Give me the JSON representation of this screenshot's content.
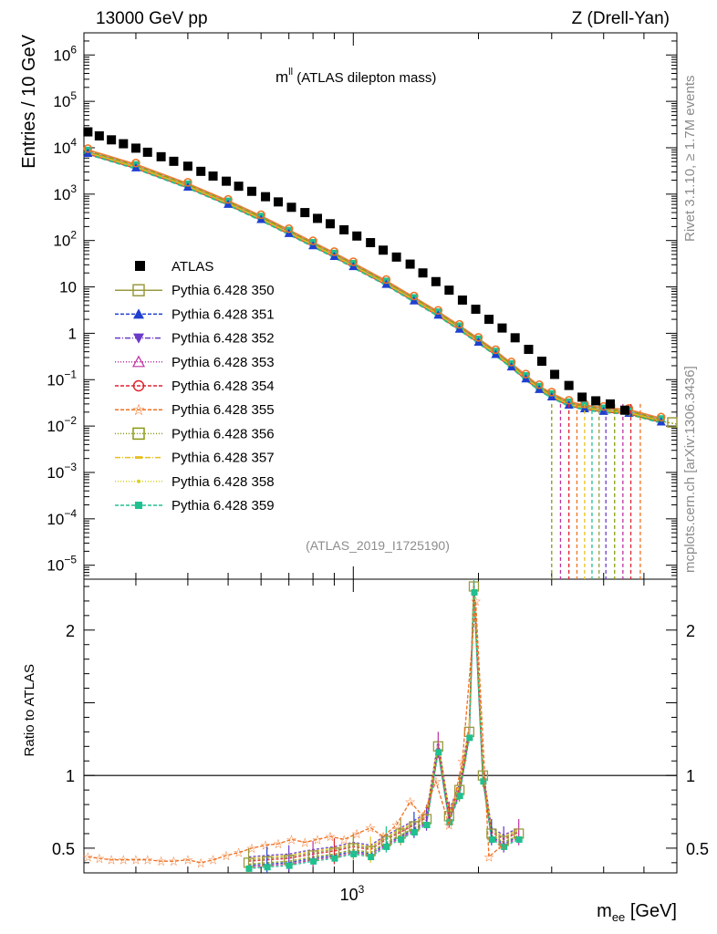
{
  "header": {
    "left": "13000 GeV pp",
    "right": "Z (Drell-Yan)",
    "title_main": "m",
    "title_sup": "ll",
    "title_rest": " (ATLAS dilepton mass)",
    "analysis_tag": "(ATLAS_2019_I1725190)",
    "side_top": "Rivet 3.1.10, ≥ 1.7M events",
    "side_bottom": "mcplots.cern.ch [arXiv:1306.3436]"
  },
  "axes": {
    "ylabel_main": "Entries / 10 GeV",
    "ylabel_ratio": "Ratio to ATLAS",
    "xlabel_base": "m",
    "xlabel_sub": "ee",
    "xlabel_unit": " [GeV]",
    "x_tick_base": "10",
    "x_tick_exp": "3"
  },
  "colors": {
    "atlas": "#000000",
    "s350": "#9a9a40",
    "s351": "#1f3fd0",
    "s352": "#6a3ac8",
    "s353": "#c030a0",
    "s354": "#e02030",
    "s355": "#f07020",
    "s356": "#8a9a10",
    "s357": "#e8c020",
    "s358": "#d8d020",
    "s359": "#20c090"
  },
  "chart_data": {
    "type": "scatter",
    "x_scale": "log",
    "xlim": [
      225,
      6000
    ],
    "main": {
      "y_scale": "log",
      "ylim": [
        5e-06,
        3000000
      ],
      "y_ticks": [
        {
          "v": 1e-05,
          "m": "10",
          "e": "−5"
        },
        {
          "v": 0.0001,
          "m": "10",
          "e": "−4"
        },
        {
          "v": 0.001,
          "m": "10",
          "e": "−3"
        },
        {
          "v": 0.01,
          "m": "10",
          "e": "−2"
        },
        {
          "v": 0.1,
          "m": "10",
          "e": "−1"
        },
        {
          "v": 1,
          "m": "1",
          "e": ""
        },
        {
          "v": 10,
          "m": "10",
          "e": ""
        },
        {
          "v": 100,
          "m": "10",
          "e": "2"
        },
        {
          "v": 1000,
          "m": "10",
          "e": "3"
        },
        {
          "v": 10000,
          "m": "10",
          "e": "4"
        },
        {
          "v": 100000,
          "m": "10",
          "e": "5"
        },
        {
          "v": 1000000,
          "m": "10",
          "e": "6"
        }
      ],
      "data": {
        "name": "ATLAS",
        "points": [
          [
            230,
            22000
          ],
          [
            245,
            18000
          ],
          [
            262,
            14800
          ],
          [
            280,
            12200
          ],
          [
            300,
            9800
          ],
          [
            320,
            8000
          ],
          [
            345,
            6400
          ],
          [
            370,
            5100
          ],
          [
            400,
            4000
          ],
          [
            430,
            3100
          ],
          [
            460,
            2450
          ],
          [
            495,
            1900
          ],
          [
            530,
            1480
          ],
          [
            570,
            1150
          ],
          [
            615,
            880
          ],
          [
            660,
            680
          ],
          [
            710,
            520
          ],
          [
            765,
            400
          ],
          [
            820,
            300
          ],
          [
            880,
            230
          ],
          [
            950,
            170
          ],
          [
            1020,
            125
          ],
          [
            1100,
            90
          ],
          [
            1180,
            62
          ],
          [
            1270,
            44
          ],
          [
            1370,
            31
          ],
          [
            1470,
            20
          ],
          [
            1580,
            13
          ],
          [
            1700,
            8.5
          ],
          [
            1830,
            5.2
          ],
          [
            1970,
            3.3
          ],
          [
            2120,
            2.0
          ],
          [
            2280,
            1.3
          ],
          [
            2450,
            0.8
          ],
          [
            2640,
            0.45
          ],
          [
            2840,
            0.25
          ],
          [
            3050,
            0.13
          ],
          [
            3300,
            0.075
          ],
          [
            3550,
            0.042
          ],
          [
            3830,
            0.035
          ],
          [
            4150,
            0.03
          ],
          [
            4500,
            0.022
          ]
        ]
      },
      "series_names": [
        "Pythia 6.428 350",
        "Pythia 6.428 351",
        "Pythia 6.428 352",
        "Pythia 6.428 353",
        "Pythia 6.428 354",
        "Pythia 6.428 355",
        "Pythia 6.428 356",
        "Pythia 6.428 357",
        "Pythia 6.428 358",
        "Pythia 6.428 359"
      ],
      "mc_band": {
        "points": [
          [
            230,
            8000
          ],
          [
            300,
            3900
          ],
          [
            400,
            1500
          ],
          [
            500,
            640
          ],
          [
            600,
            300
          ],
          [
            700,
            150
          ],
          [
            800,
            82
          ],
          [
            900,
            48
          ],
          [
            1000,
            29
          ],
          [
            1200,
            12
          ],
          [
            1400,
            5.3
          ],
          [
            1600,
            2.6
          ],
          [
            1800,
            1.3
          ],
          [
            2000,
            0.68
          ],
          [
            2200,
            0.37
          ],
          [
            2400,
            0.2
          ],
          [
            2600,
            0.11
          ],
          [
            2800,
            0.065
          ],
          [
            3000,
            0.045
          ],
          [
            3300,
            0.03
          ],
          [
            3600,
            0.025
          ],
          [
            4000,
            0.022
          ],
          [
            4600,
            0.02
          ],
          [
            5500,
            0.013
          ]
        ],
        "note": "all ten Pythia series overlap within a narrow band"
      }
    },
    "ratio": {
      "y_scale": "linear",
      "ylim": [
        0.33,
        2.35
      ],
      "y_ticks": [
        0.5,
        1,
        2
      ],
      "reference": 1,
      "series355": [
        [
          230,
          0.44
        ],
        [
          245,
          0.43
        ],
        [
          262,
          0.42
        ],
        [
          280,
          0.42
        ],
        [
          300,
          0.42
        ],
        [
          320,
          0.42
        ],
        [
          345,
          0.41
        ],
        [
          370,
          0.41
        ],
        [
          400,
          0.42
        ],
        [
          430,
          0.4
        ],
        [
          460,
          0.42
        ],
        [
          495,
          0.45
        ],
        [
          530,
          0.47
        ],
        [
          570,
          0.5
        ],
        [
          615,
          0.52
        ],
        [
          660,
          0.53
        ],
        [
          710,
          0.56
        ],
        [
          765,
          0.54
        ],
        [
          820,
          0.56
        ],
        [
          880,
          0.58
        ],
        [
          950,
          0.56
        ],
        [
          1020,
          0.6
        ],
        [
          1100,
          0.64
        ],
        [
          1180,
          0.58
        ],
        [
          1270,
          0.66
        ],
        [
          1370,
          0.82
        ],
        [
          1470,
          0.72
        ],
        [
          1580,
          0.96
        ],
        [
          1700,
          0.66
        ],
        [
          1830,
          1.1
        ],
        [
          1970,
          2.2
        ],
        [
          2120,
          0.44
        ],
        [
          2280,
          0.52
        ]
      ],
      "mc_band": [
        [
          560,
          0.4
        ],
        [
          620,
          0.41
        ],
        [
          700,
          0.42
        ],
        [
          800,
          0.45
        ],
        [
          900,
          0.47
        ],
        [
          1000,
          0.5
        ],
        [
          1100,
          0.48
        ],
        [
          1200,
          0.55
        ],
        [
          1300,
          0.6
        ],
        [
          1400,
          0.65
        ],
        [
          1500,
          0.7
        ],
        [
          1600,
          1.2
        ],
        [
          1700,
          0.72
        ],
        [
          1800,
          0.9
        ],
        [
          1900,
          1.3
        ],
        [
          1950,
          2.3
        ],
        [
          2050,
          1.0
        ],
        [
          2150,
          0.6
        ],
        [
          2300,
          0.55
        ],
        [
          2500,
          0.6
        ]
      ]
    }
  }
}
